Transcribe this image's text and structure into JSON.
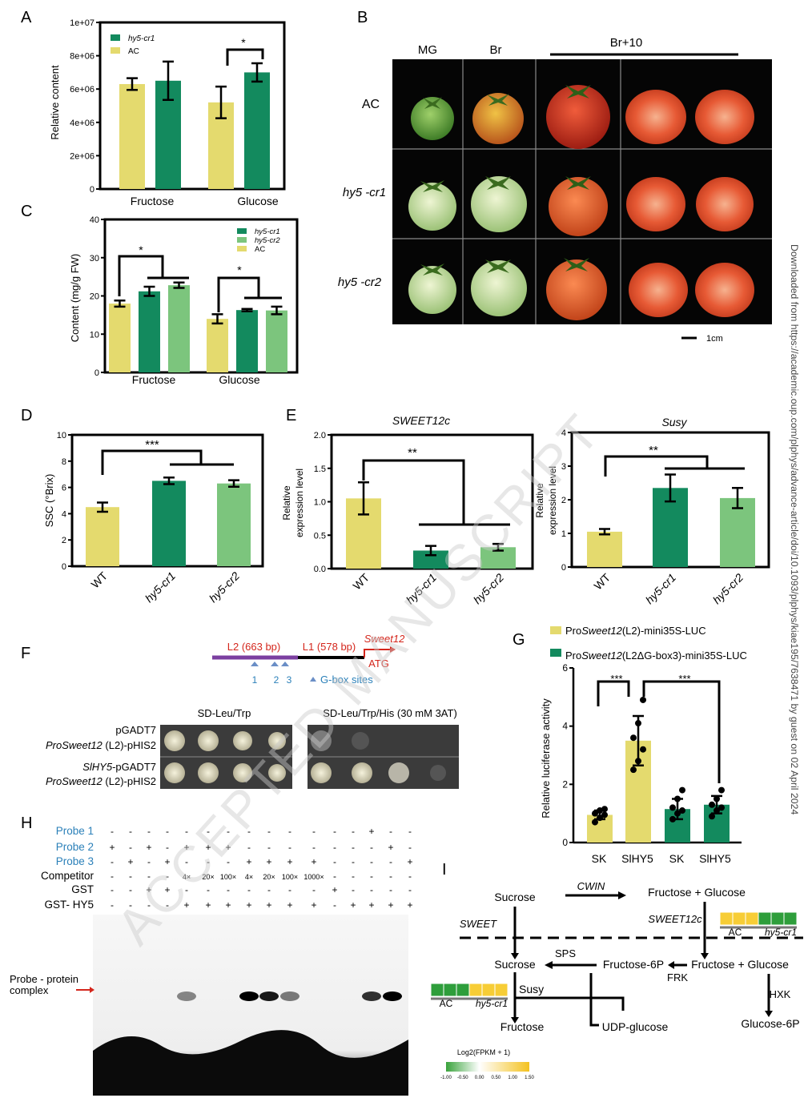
{
  "colors": {
    "ac": "#e4da6e",
    "cr1": "#138a5e",
    "cr2": "#7cc57d",
    "red": "#d4261c",
    "blue": "#2b80b9",
    "purple": "#7b3fa0"
  },
  "side_text": "Downloaded from https://academic.oup.com/plphys/advance-article/doi/10.1093/plphys/kiae195/7638471 by guest on 02 April 2024",
  "watermark": "ACCEPTED MANUSCRIPT",
  "panelA": {
    "label": "A",
    "chart_data": {
      "type": "bar",
      "ylabel": "Relative content",
      "yticks": [
        "0",
        "2e+06",
        "4e+06",
        "6e+06",
        "8e+06",
        "1e+07"
      ],
      "ylim": [
        0,
        10000000
      ],
      "categories": [
        "Fructose",
        "Glucose"
      ],
      "series": [
        {
          "name": "AC",
          "values": [
            6300000,
            5200000
          ],
          "err": [
            350000,
            950000
          ]
        },
        {
          "name": "hy5-cr1",
          "values": [
            6500000,
            7000000
          ],
          "err": [
            1150000,
            550000
          ]
        }
      ],
      "legend": [
        "hy5-cr1",
        "AC"
      ],
      "sig": "*"
    }
  },
  "panelC": {
    "label": "C",
    "chart_data": {
      "type": "bar",
      "ylabel": "Content (mg/g FW)",
      "yticks": [
        "0",
        "10",
        "20",
        "30",
        "40"
      ],
      "ylim": [
        0,
        40
      ],
      "categories": [
        "Fructose",
        "Glucose"
      ],
      "series": [
        {
          "name": "AC",
          "values": [
            18,
            14
          ],
          "err": [
            0.8,
            1.2
          ]
        },
        {
          "name": "hy5-cr1",
          "values": [
            21.2,
            16.3
          ],
          "err": [
            1.2,
            0.3
          ]
        },
        {
          "name": "hy5-cr2",
          "values": [
            22.8,
            16.2
          ],
          "err": [
            0.7,
            1.0
          ]
        }
      ],
      "legend": [
        "hy5-cr1",
        "hy5-cr2",
        "AC"
      ],
      "sig": [
        "*",
        "*"
      ]
    }
  },
  "panelD": {
    "label": "D",
    "chart_data": {
      "type": "bar",
      "ylabel": "SSC (°Brix)",
      "yticks": [
        "0",
        "2",
        "4",
        "6",
        "8",
        "10"
      ],
      "ylim": [
        0,
        10
      ],
      "categories": [
        "WT",
        "hy5-cr1",
        "hy5-cr2"
      ],
      "values": [
        4.5,
        6.5,
        6.3
      ],
      "err": [
        0.35,
        0.25,
        0.25
      ],
      "sig": "***"
    }
  },
  "panelE1": {
    "label": "E",
    "title": "SWEET12c",
    "chart_data": {
      "type": "bar",
      "ylabel1": "Relative",
      "ylabel2": "expression level",
      "yticks": [
        "0.0",
        "0.5",
        "1.0",
        "1.5",
        "2.0"
      ],
      "ylim": [
        0,
        2
      ],
      "categories": [
        "WT",
        "hy5-cr1",
        "hy5-cr2"
      ],
      "values": [
        1.05,
        0.27,
        0.32
      ],
      "err": [
        0.24,
        0.07,
        0.05
      ],
      "sig": "**"
    }
  },
  "panelE2": {
    "title": "Susy",
    "chart_data": {
      "type": "bar",
      "ylabel1": "Relative",
      "ylabel2": "expression level",
      "yticks": [
        "0",
        "1",
        "2",
        "3",
        "4"
      ],
      "ylim": [
        0,
        4
      ],
      "categories": [
        "WT",
        "hy5-cr1",
        "hy5-cr2"
      ],
      "values": [
        1.05,
        2.35,
        2.05
      ],
      "err": [
        0.08,
        0.4,
        0.3
      ],
      "sig": "**"
    }
  },
  "panelB": {
    "label": "B",
    "cols": [
      "MG",
      "Br",
      "Br+10"
    ],
    "rows": [
      "AC",
      "hy5 -cr1",
      "hy5 -cr2"
    ],
    "scale": "1cm"
  },
  "panelF": {
    "label": "F",
    "l2": "L2 (663 bp)",
    "l1": "L1 (578 bp)",
    "gene": "Sweet12",
    "atg": "ATG",
    "sites": [
      "1",
      "2",
      "3"
    ],
    "site_label": "G-box sites",
    "media1": "SD-Leu/Trp",
    "media2": "SD-Leu/Trp/His (30 mM 3AT)",
    "row1a": "pGADT7",
    "row1b_pre": "ProSweet12",
    "row1b_post": " (L2)-pHIS2",
    "row2a_pre": "SlHY5",
    "row2a_post": "-pGADT7",
    "row2b_pre": "ProSweet12",
    "row2b_post": " (L2)-pHIS2"
  },
  "panelG": {
    "label": "G",
    "leg1_pre": "Pro",
    "leg1_it": "Sweet12",
    "leg1_post": "(L2)-mini35S-LUC",
    "leg2_pre": "Pro",
    "leg2_it": "Sweet12",
    "leg2_post": "(L2ΔG-box3)-mini35S-LUC",
    "chart_data": {
      "type": "bar",
      "ylabel": "Relative luciferase activity",
      "yticks": [
        "0",
        "2",
        "4",
        "6"
      ],
      "ylim": [
        0,
        6
      ],
      "categories": [
        "SK",
        "SlHY5",
        "SK",
        "SlHY5"
      ],
      "values": [
        0.95,
        3.5,
        1.15,
        1.3
      ],
      "err": [
        0.15,
        0.85,
        0.35,
        0.3
      ],
      "points": [
        [
          0.7,
          0.85,
          0.95,
          1.0,
          1.1,
          1.15
        ],
        [
          2.5,
          2.8,
          3.2,
          3.6,
          4.1,
          4.9
        ],
        [
          0.8,
          1.0,
          1.1,
          1.2,
          1.5,
          1.8
        ],
        [
          0.9,
          1.1,
          1.2,
          1.3,
          1.5,
          1.8
        ]
      ],
      "sig": [
        "***",
        "***"
      ]
    }
  },
  "panelH": {
    "label": "H",
    "rows": [
      {
        "name": "Probe 1",
        "cells": [
          "-",
          "-",
          "-",
          "-",
          "-",
          "-",
          "-",
          "-",
          "-",
          "-",
          "-",
          "-",
          "-",
          "+",
          "-",
          "-"
        ]
      },
      {
        "name": "Probe 2",
        "cells": [
          "+",
          "-",
          "+",
          "-",
          "+",
          "+",
          "+",
          "-",
          "-",
          "-",
          "-",
          "-",
          "-",
          "-",
          "+",
          "-"
        ]
      },
      {
        "name": "Probe 3",
        "cells": [
          "-",
          "+",
          "-",
          "+",
          "-",
          "-",
          "-",
          "+",
          "+",
          "+",
          "+",
          "-",
          "-",
          "-",
          "-",
          "+"
        ]
      },
      {
        "name": "Competitor",
        "cells": [
          "-",
          "-",
          "-",
          "-",
          "4×",
          "20×",
          "100×",
          "4×",
          "20×",
          "100×",
          "1000×",
          "-",
          "-",
          "-",
          "-",
          "-"
        ]
      },
      {
        "name": "GST",
        "cells": [
          "-",
          "-",
          "+",
          "+",
          "-",
          "-",
          "-",
          "-",
          "-",
          "-",
          "-",
          "+",
          "-",
          "-",
          "-",
          "-"
        ]
      },
      {
        "name": "GST- HY5",
        "cells": [
          "-",
          "-",
          "-",
          "-",
          "+",
          "+",
          "+",
          "+",
          "+",
          "+",
          "+",
          "-",
          "+",
          "+",
          "+",
          "+"
        ]
      }
    ],
    "complex1": "Probe - protein",
    "complex2": "complex"
  },
  "panelI": {
    "label": "I",
    "sucrose_top": "Sucrose",
    "cwin": "CWIN",
    "fg_top": "Fructose  +  Glucose",
    "sweet": "SWEET",
    "sweet12c": "SWEET12c",
    "ac": "AC",
    "cr1": "hy5-cr1",
    "sucrose_in": "Sucrose",
    "sps": "SPS",
    "f6p": "Fructose-6P",
    "frk": "FRK",
    "fg_in": "Fructose + Glucose",
    "susy": "Susy",
    "hxk": "HXK",
    "fructose": "Fructose",
    "udpg": "UDP-glucose",
    "g6p": "Glucose-6P",
    "scale_title": "Log2(FPKM + 1)",
    "scale_ticks": [
      "-1.00",
      "-0.50",
      "0.00",
      "0.50",
      "1.00",
      "1.50"
    ]
  }
}
